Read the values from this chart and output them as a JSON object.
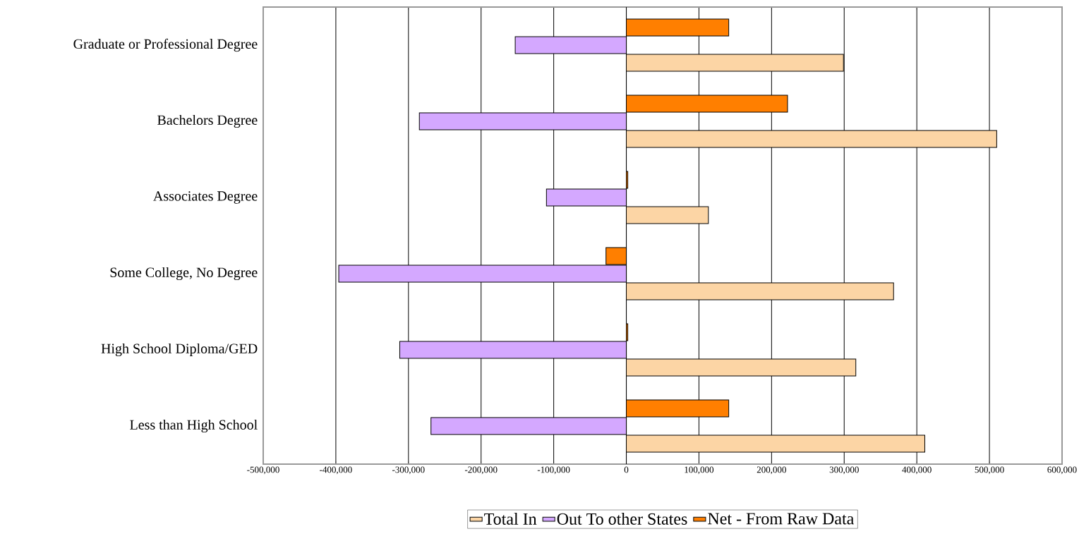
{
  "chart_data": {
    "type": "bar",
    "orientation": "horizontal",
    "categories": [
      "Graduate or Professional Degree",
      "Bachelors Degree",
      "Associates Degree",
      "Some College, No Degree",
      "High School Diploma/GED",
      "Less than High School"
    ],
    "series": [
      {
        "name": "Total In",
        "color": "#fcd5a5",
        "values": [
          299000,
          510000,
          113000,
          368000,
          316000,
          411000
        ]
      },
      {
        "name": "Out To other States",
        "color": "#d4a8ff",
        "values": [
          -153000,
          -285000,
          -110000,
          -396000,
          -312000,
          -269000
        ]
      },
      {
        "name": "Net - From Raw Data",
        "color": "#ff7f00",
        "values": [
          141000,
          222000,
          2000,
          -28000,
          2000,
          141000
        ]
      }
    ],
    "xlim": [
      -500000,
      600000
    ],
    "xticks": [
      {
        "value": -500000,
        "label": "-500,000"
      },
      {
        "value": -400000,
        "label": "-400,000"
      },
      {
        "value": -300000,
        "label": "-300,000"
      },
      {
        "value": -200000,
        "label": "-200,000"
      },
      {
        "value": -100000,
        "label": "-100,000"
      },
      {
        "value": 0,
        "label": "0"
      },
      {
        "value": 100000,
        "label": "100,000"
      },
      {
        "value": 200000,
        "label": "200,000"
      },
      {
        "value": 300000,
        "label": "300,000"
      },
      {
        "value": 400000,
        "label": "400,000"
      },
      {
        "value": 500000,
        "label": "500,000"
      },
      {
        "value": 600000,
        "label": "600,000"
      }
    ],
    "grid": "x",
    "legend": "bottom"
  }
}
